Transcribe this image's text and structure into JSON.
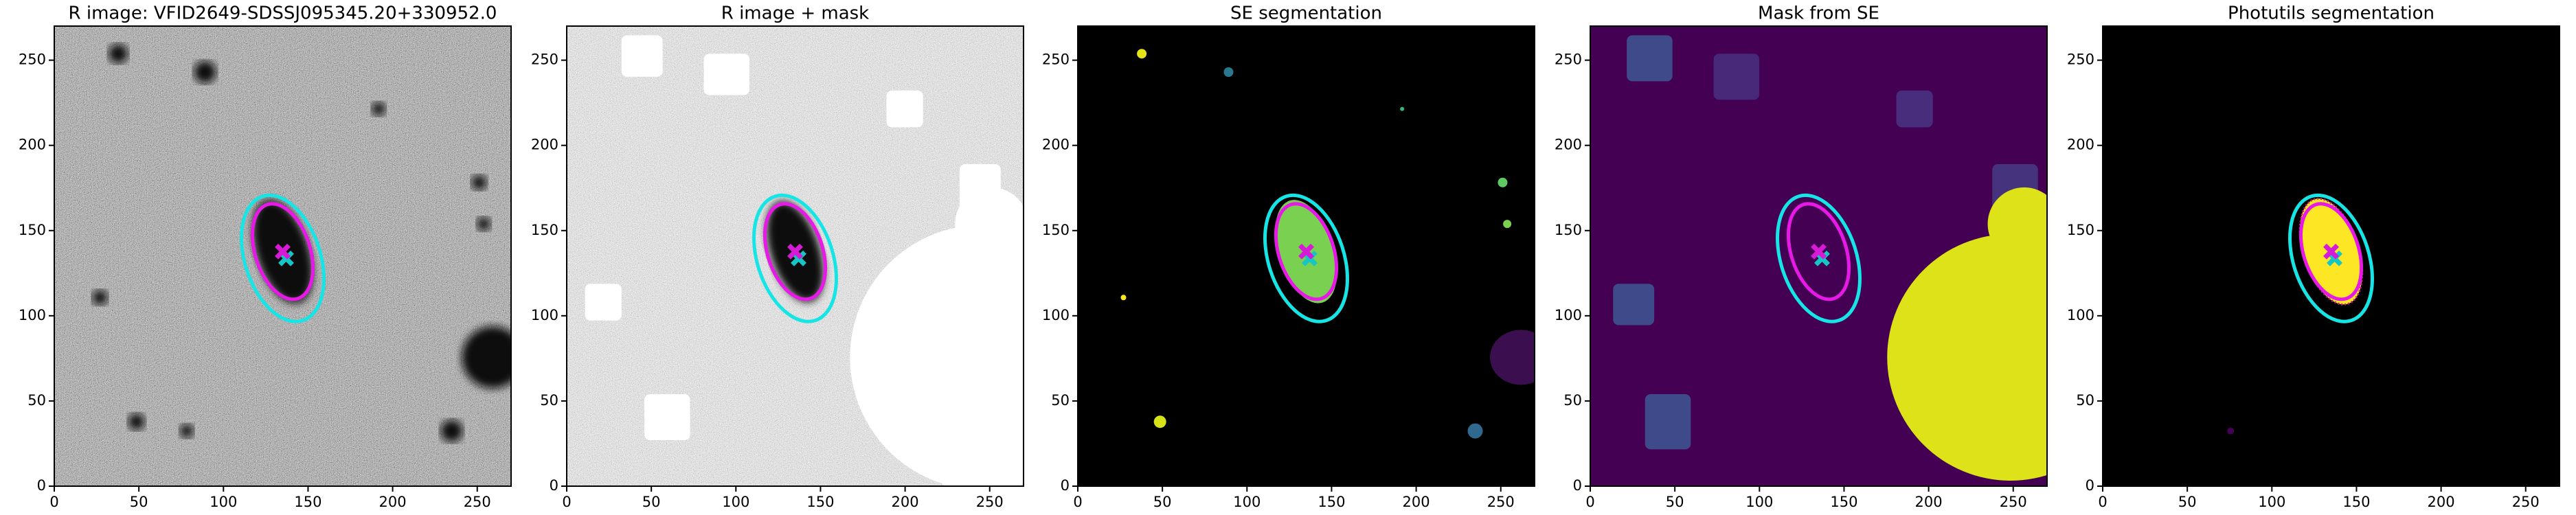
{
  "chart_data": [
    {
      "type": "image",
      "title": "R image: VFID2649-SDSSJ095345.20+330952.0",
      "xlim": [
        0,
        270
      ],
      "ylim": [
        0,
        270
      ],
      "xticks": [
        0,
        50,
        100,
        150,
        200,
        250
      ],
      "yticks": [
        0,
        50,
        100,
        150,
        200,
        250
      ]
    },
    {
      "type": "image",
      "title": "R image + mask",
      "xlim": [
        0,
        270
      ],
      "ylim": [
        0,
        270
      ],
      "xticks": [
        0,
        50,
        100,
        150,
        200,
        250
      ],
      "yticks": [
        0,
        50,
        100,
        150,
        200,
        250
      ]
    },
    {
      "type": "image",
      "title": "SE segmentation",
      "xlim": [
        0,
        270
      ],
      "ylim": [
        0,
        270
      ],
      "xticks": [
        0,
        50,
        100,
        150,
        200,
        250
      ],
      "yticks": [
        0,
        50,
        100,
        150,
        200,
        250
      ]
    },
    {
      "type": "image",
      "title": "Mask from SE",
      "xlim": [
        0,
        270
      ],
      "ylim": [
        0,
        270
      ],
      "xticks": [
        0,
        50,
        100,
        150,
        200,
        250
      ],
      "yticks": [
        0,
        50,
        100,
        150,
        200,
        250
      ]
    },
    {
      "type": "image",
      "title": "Photutils segmentation",
      "xlim": [
        0,
        270
      ],
      "ylim": [
        0,
        270
      ],
      "xticks": [
        0,
        50,
        100,
        150,
        200,
        250
      ],
      "yticks": [
        0,
        50,
        100,
        150,
        200,
        250
      ]
    }
  ]
}
